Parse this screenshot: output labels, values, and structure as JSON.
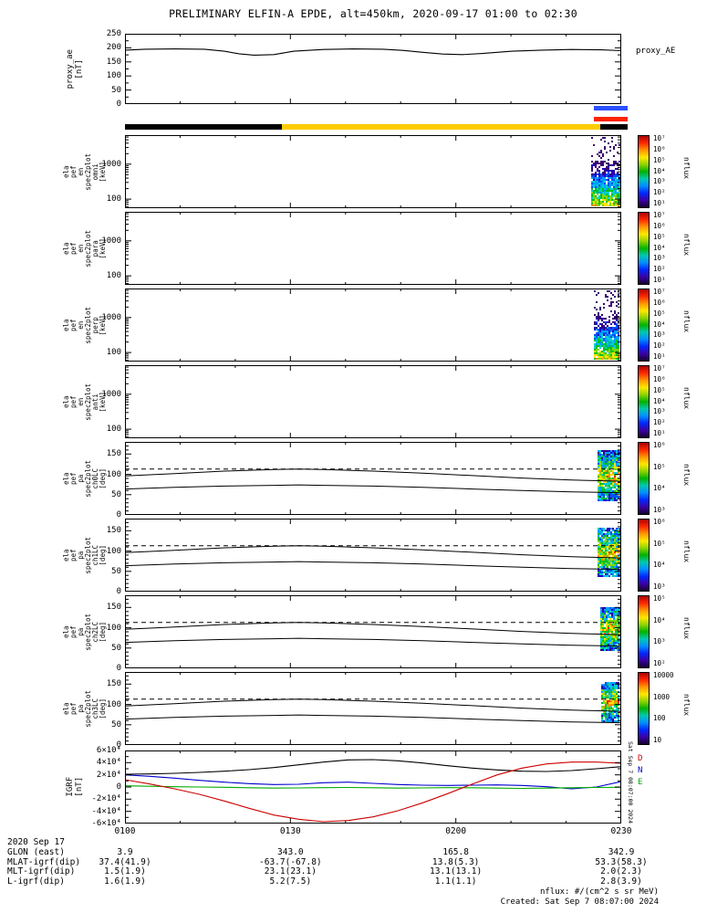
{
  "title": "PRELIMINARY ELFIN-A EPDE, alt=450km, 2020-09-17 01:00 to 02:30",
  "footer": {
    "flux_units": "nflux: #/(cm^2 s sr MeV)",
    "created": "Created: Sat Sep  7 08:07:00 2024",
    "side_stamp": "Sat Sep  7 08:07:00 2024"
  },
  "bottom": {
    "date_label": "2020 Sep 17",
    "rows": [
      {
        "label": "GLON (east)",
        "values": [
          "3.9",
          "343.0",
          "165.8",
          "342.9"
        ]
      },
      {
        "label": "MLAT-igrf(dip)",
        "values": [
          "37.4(41.9)",
          "-63.7(-67.8)",
          "13.8(5.3)",
          "53.3(58.3)"
        ]
      },
      {
        "label": "MLT-igrf(dip)",
        "values": [
          "1.5(1.9)",
          "23.1(23.1)",
          "13.1(13.1)",
          "2.0(2.3)"
        ]
      },
      {
        "label": "L-igrf(dip)",
        "values": [
          "1.6(1.9)",
          "5.2(7.5)",
          "1.1(1.1)",
          "2.8(3.9)"
        ]
      }
    ]
  },
  "bars": [
    {
      "y": 116,
      "h": 5,
      "segments": [
        {
          "x0": 0.944,
          "x1": 1.012,
          "color": "#2b50ff"
        }
      ]
    },
    {
      "y": 128,
      "h": 5,
      "segments": [
        {
          "x0": 0.944,
          "x1": 1.012,
          "color": "#ff2200"
        }
      ]
    },
    {
      "y": 136,
      "h": 6,
      "segments": [
        {
          "x0": 0.0,
          "x1": 0.316,
          "color": "#000000"
        },
        {
          "x0": 0.316,
          "x1": 0.957,
          "color": "#ffcc00"
        },
        {
          "x0": 0.957,
          "x1": 1.012,
          "color": "#000000"
        }
      ]
    }
  ],
  "colors": {
    "frame": "#000000",
    "bar_yellow": "#ffcc00",
    "bar_blue": "#2b50ff",
    "bar_red": "#ff2200",
    "palette": [
      "#3a006f",
      "#2000c0",
      "#0050ff",
      "#00a0ff",
      "#00d0d0",
      "#00c020",
      "#80d800",
      "#ffe400",
      "#ff9000",
      "#ff2000"
    ],
    "colorbar_gradient": [
      "#b00000",
      "#ff2a00",
      "#ff9800",
      "#ffe800",
      "#8fd400",
      "#00b400",
      "#00c8b0",
      "#0090ff",
      "#0028ff",
      "#3c00a8",
      "#16002e"
    ]
  },
  "chart_data": {
    "type": "multi-panel-timeseries-spectrogram",
    "x_range": [
      "2020-09-17 01:00",
      "2020-09-17 02:30"
    ],
    "x_ticks": [
      "0100",
      "0130",
      "0200",
      "0230"
    ],
    "panels": [
      {
        "id": "proxy_ae",
        "kind": "line",
        "label_lines": "proxy_ae\n[nT]",
        "right_label": "proxy_AE",
        "ylim": [
          0,
          250
        ],
        "yticks_v": [
          0,
          50,
          100,
          150,
          200,
          250
        ],
        "yticks_l": [
          "0",
          "50",
          "100",
          "150",
          "200",
          "250"
        ],
        "series": [
          {
            "name": "proxy_AE",
            "color": "#000000",
            "x": [
              0,
              0.04,
              0.1,
              0.16,
              0.2,
              0.23,
              0.26,
              0.3,
              0.34,
              0.4,
              0.46,
              0.52,
              0.56,
              0.6,
              0.64,
              0.68,
              0.72,
              0.78,
              0.84,
              0.9,
              0.96,
              1.0
            ],
            "y": [
              192,
              195,
              196,
              195,
              188,
              179,
              174,
              176,
              188,
              194,
              196,
              195,
              191,
              184,
              178,
              176,
              180,
              188,
              192,
              194,
              193,
              190
            ]
          }
        ]
      },
      {
        "id": "en_omni",
        "kind": "spec_en",
        "yscale": "log",
        "label_lines": "ela\npef\nen\nspec2plot\nomni\n[keV]",
        "ylim": [
          55,
          6800
        ],
        "yticks_v": [
          100,
          1000
        ],
        "yticks_l": [
          "100",
          "1000"
        ],
        "colorbar": {
          "ticks": [
            "10⁷",
            "10⁶",
            "10⁵",
            "10⁴",
            "10³",
            "10²",
            "10¹"
          ],
          "label": "nflux"
        },
        "blob": {
          "x0": 0.94,
          "x1": 1.0,
          "seed": 7
        }
      },
      {
        "id": "en_para",
        "kind": "spec_en",
        "yscale": "log",
        "label_lines": "ela\npef\nen\nspec2plot\npara\n[keV]",
        "ylim": [
          55,
          6800
        ],
        "yticks_v": [
          100,
          1000
        ],
        "yticks_l": [
          "100",
          "1000"
        ],
        "colorbar": {
          "ticks": [
            "10⁷",
            "10⁶",
            "10⁵",
            "10⁴",
            "10³",
            "10²",
            "10¹"
          ],
          "label": "nflux"
        },
        "blob": null
      },
      {
        "id": "en_perp",
        "kind": "spec_en",
        "yscale": "log",
        "label_lines": "ela\npef\nen\nspec2plot\nperp\n[keV]",
        "ylim": [
          55,
          6800
        ],
        "yticks_v": [
          100,
          1000
        ],
        "yticks_l": [
          "100",
          "1000"
        ],
        "colorbar": {
          "ticks": [
            "10⁷",
            "10⁶",
            "10⁵",
            "10⁴",
            "10³",
            "10²",
            "10¹"
          ],
          "label": "nflux"
        },
        "blob": {
          "x0": 0.945,
          "x1": 1.0,
          "seed": 19
        }
      },
      {
        "id": "en_anti",
        "kind": "spec_en",
        "yscale": "log",
        "label_lines": "ela\npef\nen\nspec2plot\nanti\n[keV]",
        "ylim": [
          55,
          6800
        ],
        "yticks_v": [
          100,
          1000
        ],
        "yticks_l": [
          "100",
          "1000"
        ],
        "colorbar": {
          "ticks": [
            "10⁷",
            "10⁶",
            "10⁵",
            "10⁴",
            "10³",
            "10²",
            "10¹"
          ],
          "label": "nflux"
        },
        "blob": null
      },
      {
        "id": "pa_ch0",
        "kind": "spec_pa",
        "label_lines": "ela\npef\npa\nspec2plot\nch0LC\n[deg]",
        "ylim": [
          0,
          180
        ],
        "yticks_v": [
          0,
          50,
          100,
          150
        ],
        "yticks_l": [
          "0",
          "50",
          "100",
          "150"
        ],
        "colorbar": {
          "ticks": [
            "10⁶",
            "10⁵",
            "10⁴",
            "10³"
          ],
          "label": "nflux"
        },
        "curves": {
          "x": [
            0,
            0.1,
            0.2,
            0.3,
            0.35,
            0.4,
            0.5,
            0.6,
            0.7,
            0.8,
            0.9,
            1.0
          ],
          "upper": [
            96,
            102,
            108,
            112,
            113,
            112,
            108,
            103,
            97,
            91,
            86,
            83
          ],
          "lower": [
            64,
            68,
            71,
            73,
            74,
            73,
            71,
            68,
            64,
            60,
            57,
            55
          ],
          "dashed": 113
        },
        "blob": {
          "x0": 0.952,
          "x1": 1.0,
          "y0": 35,
          "y1": 160,
          "seed": 31
        }
      },
      {
        "id": "pa_ch1",
        "kind": "spec_pa",
        "label_lines": "ela\npef\npa\nspec2plot\nch1LC\n[deg]",
        "ylim": [
          0,
          180
        ],
        "yticks_v": [
          0,
          50,
          100,
          150
        ],
        "yticks_l": [
          "0",
          "50",
          "100",
          "150"
        ],
        "colorbar": {
          "ticks": [
            "10⁶",
            "10⁵",
            "10⁴",
            "10³"
          ],
          "label": "nflux"
        },
        "curves": {
          "x": [
            0,
            0.1,
            0.2,
            0.3,
            0.35,
            0.4,
            0.5,
            0.6,
            0.7,
            0.8,
            0.9,
            1.0
          ],
          "upper": [
            96,
            102,
            108,
            112,
            113,
            112,
            108,
            103,
            97,
            91,
            86,
            83
          ],
          "lower": [
            64,
            68,
            71,
            73,
            74,
            73,
            71,
            68,
            64,
            60,
            57,
            55
          ],
          "dashed": 113
        },
        "blob": {
          "x0": 0.952,
          "x1": 1.0,
          "y0": 38,
          "y1": 158,
          "seed": 37
        }
      },
      {
        "id": "pa_ch2",
        "kind": "spec_pa",
        "label_lines": "ela\npef\npa\nspec2plot\nch2LC\n[deg]",
        "ylim": [
          0,
          180
        ],
        "yticks_v": [
          0,
          50,
          100,
          150
        ],
        "yticks_l": [
          "0",
          "50",
          "100",
          "150"
        ],
        "colorbar": {
          "ticks": [
            "10⁵",
            "10⁴",
            "10³",
            "10²"
          ],
          "label": "nflux"
        },
        "curves": {
          "x": [
            0,
            0.1,
            0.2,
            0.3,
            0.35,
            0.4,
            0.5,
            0.6,
            0.7,
            0.8,
            0.9,
            1.0
          ],
          "upper": [
            96,
            102,
            108,
            112,
            113,
            112,
            108,
            103,
            97,
            91,
            86,
            83
          ],
          "lower": [
            64,
            68,
            71,
            73,
            74,
            73,
            71,
            68,
            64,
            60,
            57,
            55
          ],
          "dashed": 113
        },
        "blob": {
          "x0": 0.958,
          "x1": 1.0,
          "y0": 42,
          "y1": 150,
          "seed": 41
        }
      },
      {
        "id": "pa_ch3",
        "kind": "spec_pa",
        "label_lines": "ela\npef\npa\nspec2plot\nch3LC\n[deg]",
        "ylim": [
          0,
          180
        ],
        "yticks_v": [
          0,
          50,
          100,
          150
        ],
        "yticks_l": [
          "0",
          "50",
          "100",
          "150"
        ],
        "colorbar": {
          "ticks": [
            "10000",
            "1000",
            "100",
            "10"
          ],
          "label": "nflux"
        },
        "curves": {
          "x": [
            0,
            0.1,
            0.2,
            0.3,
            0.35,
            0.4,
            0.5,
            0.6,
            0.7,
            0.8,
            0.9,
            1.0
          ],
          "upper": [
            96,
            102,
            108,
            112,
            113,
            112,
            108,
            103,
            97,
            91,
            86,
            83
          ],
          "lower": [
            64,
            68,
            71,
            73,
            74,
            73,
            71,
            68,
            64,
            60,
            57,
            55
          ],
          "dashed": 113
        },
        "blob": {
          "x0": 0.96,
          "x1": 1.0,
          "y0": 60,
          "y1": 155,
          "seed": 43
        }
      },
      {
        "id": "igrf",
        "kind": "line",
        "label_lines": "IGRF\n[nT]",
        "ylim": [
          -60000,
          60000
        ],
        "yticks_v": [
          -60000,
          -40000,
          -20000,
          0,
          20000,
          40000,
          60000
        ],
        "yticks_l": [
          "-6×10⁴",
          "-4×10⁴",
          "-2×10⁴",
          "0",
          "2×10⁴",
          "4×10⁴",
          "6×10⁴"
        ],
        "legend": [
          {
            "label": "D",
            "color": "#cc0000"
          },
          {
            "label": "N",
            "color": "#0000cc"
          },
          {
            "label": "E",
            "color": "#00aa00"
          }
        ],
        "series": [
          {
            "name": "Btotal",
            "color": "#000000",
            "x": [
              0,
              0.05,
              0.1,
              0.15,
              0.2,
              0.25,
              0.3,
              0.35,
              0.4,
              0.45,
              0.5,
              0.55,
              0.6,
              0.65,
              0.7,
              0.75,
              0.8,
              0.85,
              0.9,
              0.95,
              1.0
            ],
            "y": [
              21000,
              21500,
              22500,
              24000,
              26000,
              28500,
              32000,
              36500,
              41000,
              44500,
              45000,
              43000,
              39500,
              35000,
              31000,
              28000,
              26000,
              25500,
              27000,
              30000,
              33500
            ]
          },
          {
            "name": "N",
            "color": "#0000cc",
            "x": [
              0,
              0.05,
              0.1,
              0.15,
              0.2,
              0.25,
              0.3,
              0.35,
              0.4,
              0.45,
              0.5,
              0.55,
              0.6,
              0.65,
              0.7,
              0.75,
              0.8,
              0.85,
              0.9,
              0.95,
              1.0
            ],
            "y": [
              20000,
              17500,
              14500,
              11000,
              8000,
              5500,
              4000,
              4500,
              7000,
              8000,
              6000,
              4000,
              3000,
              2500,
              3000,
              3500,
              2500,
              500,
              -3000,
              0,
              9000
            ]
          },
          {
            "name": "E",
            "color": "#00aa00",
            "x": [
              0,
              0.05,
              0.1,
              0.15,
              0.2,
              0.25,
              0.3,
              0.35,
              0.4,
              0.45,
              0.5,
              0.55,
              0.6,
              0.65,
              0.7,
              0.75,
              0.8,
              0.85,
              0.9,
              0.95,
              1.0
            ],
            "y": [
              2000,
              1200,
              500,
              0,
              -500,
              -1200,
              -1800,
              -1500,
              -1000,
              -800,
              -1200,
              -1800,
              -1500,
              -1000,
              -1200,
              -1800,
              -2200,
              -1800,
              -1200,
              -800,
              -500
            ]
          },
          {
            "name": "D",
            "color": "#cc0000",
            "x": [
              0,
              0.05,
              0.1,
              0.15,
              0.2,
              0.25,
              0.3,
              0.35,
              0.4,
              0.45,
              0.5,
              0.55,
              0.6,
              0.65,
              0.7,
              0.75,
              0.8,
              0.85,
              0.9,
              0.95,
              1.0
            ],
            "y": [
              12000,
              5000,
              -3000,
              -12000,
              -23000,
              -35000,
              -46000,
              -53000,
              -57000,
              -55000,
              -49000,
              -39000,
              -26000,
              -11000,
              5000,
              20000,
              31000,
              38000,
              41000,
              41000,
              39000
            ]
          }
        ]
      }
    ]
  }
}
